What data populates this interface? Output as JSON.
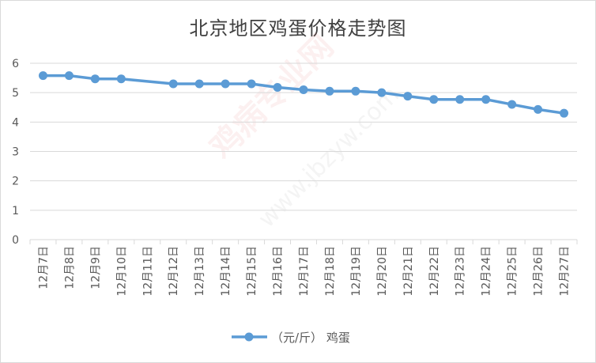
{
  "chart_data": {
    "type": "line",
    "title": "北京地区鸡蛋价格走势图",
    "categories": [
      "12月7日",
      "12月8日",
      "12月9日",
      "12月10日",
      "12月11日",
      "12月12日",
      "12月13日",
      "12月14日",
      "12月15日",
      "12月16日",
      "12月17日",
      "12月18日",
      "12月19日",
      "12月20日",
      "12月21日",
      "12月22日",
      "12月23日",
      "12月24日",
      "12月25日",
      "12月26日",
      "12月27日"
    ],
    "series": [
      {
        "name": "（元/斤） 鸡蛋",
        "values": [
          5.58,
          5.58,
          5.47,
          5.47,
          null,
          5.3,
          5.3,
          5.3,
          5.3,
          5.18,
          5.1,
          5.05,
          5.05,
          5.0,
          4.88,
          4.77,
          4.77,
          4.77,
          4.6,
          4.43,
          4.3
        ],
        "color": "#5b9bd5"
      }
    ],
    "ylim": [
      0,
      6
    ],
    "yticks": [
      0,
      1,
      2,
      3,
      4,
      5,
      6
    ],
    "grid": true,
    "legend": "bottom",
    "watermark": [
      "鸡病专业网",
      "www.jbzyw.com"
    ]
  }
}
